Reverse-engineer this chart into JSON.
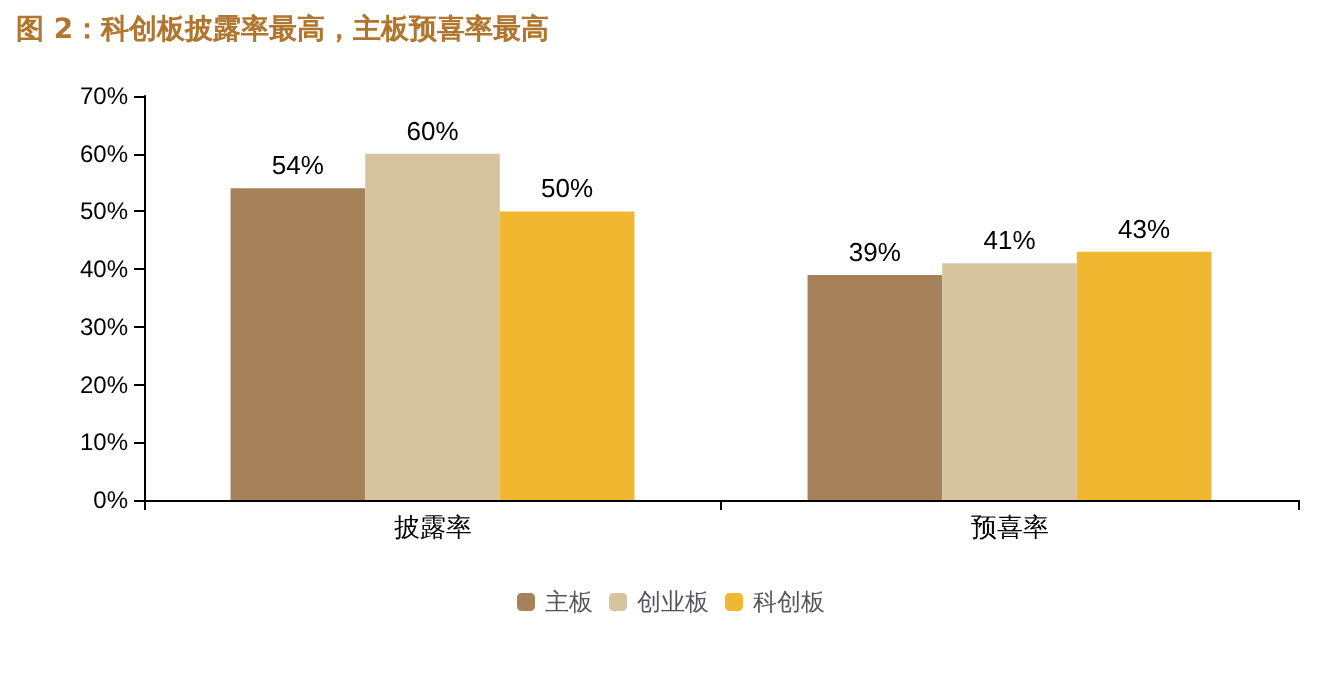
{
  "chart_data": {
    "type": "bar",
    "title": "图 2：科创板披露率最高，主板预喜率最高",
    "categories": [
      "披露率",
      "预喜率"
    ],
    "series": [
      {
        "name": "主板",
        "color": "#a6825a",
        "values": [
          54,
          39
        ],
        "value_labels": [
          "54%",
          "39%"
        ]
      },
      {
        "name": "创业板",
        "color": "#d5c49e",
        "values": [
          60,
          41
        ],
        "value_labels": [
          "60%",
          "41%"
        ]
      },
      {
        "name": "科创板",
        "color": "#f2b731",
        "values": [
          50,
          43
        ],
        "value_labels": [
          "50%",
          "43%"
        ]
      }
    ],
    "ylim": [
      0,
      70
    ],
    "yticks": [
      {
        "value": 0,
        "label": "0%"
      },
      {
        "value": 10,
        "label": "10%"
      },
      {
        "value": 20,
        "label": "20%"
      },
      {
        "value": 30,
        "label": "30%"
      },
      {
        "value": 40,
        "label": "40%"
      },
      {
        "value": 50,
        "label": "50%"
      },
      {
        "value": 60,
        "label": "60%"
      },
      {
        "value": 70,
        "label": "70%"
      }
    ],
    "grid": false,
    "legend": "bottom"
  }
}
